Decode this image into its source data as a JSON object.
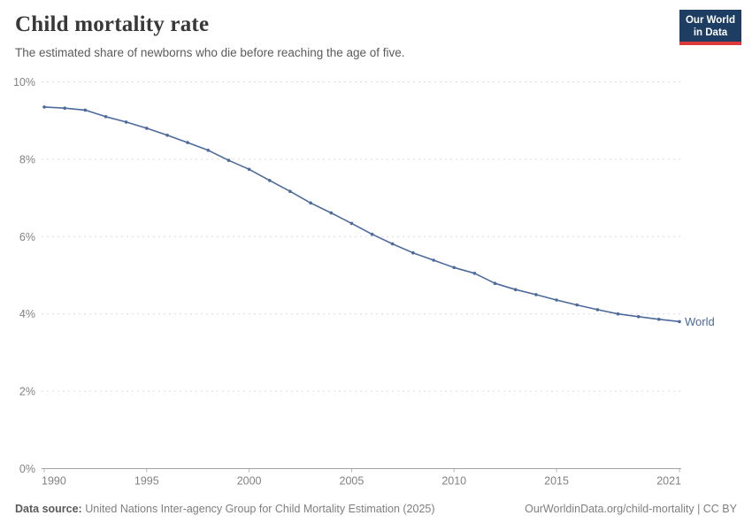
{
  "header": {
    "title": "Child mortality rate",
    "subtitle": "The estimated share of newborns who die before reaching the age of five.",
    "logo": {
      "line1": "Our World",
      "line2": "in Data",
      "bg_color": "#1d3d63",
      "accent_color": "#dc3a3a"
    }
  },
  "chart_data": {
    "type": "line",
    "title": "Child mortality rate",
    "xlabel": "",
    "ylabel": "",
    "xlim": [
      1990,
      2021
    ],
    "ylim": [
      0,
      10
    ],
    "grid": "horizontal-dashed",
    "legend_position": "end-of-line-label",
    "x_ticks": [
      {
        "value": 1990,
        "label": "1990"
      },
      {
        "value": 1995,
        "label": "1995"
      },
      {
        "value": 2000,
        "label": "2000"
      },
      {
        "value": 2005,
        "label": "2005"
      },
      {
        "value": 2010,
        "label": "2010"
      },
      {
        "value": 2015,
        "label": "2015"
      },
      {
        "value": 2021,
        "label": "2021"
      }
    ],
    "y_ticks": [
      {
        "value": 0,
        "label": "0%"
      },
      {
        "value": 2,
        "label": "2%"
      },
      {
        "value": 4,
        "label": "4%"
      },
      {
        "value": 6,
        "label": "6%"
      },
      {
        "value": 8,
        "label": "8%"
      },
      {
        "value": 10,
        "label": "10%"
      }
    ],
    "series": [
      {
        "name": "World",
        "color": "#4C6A9C",
        "x": [
          1990,
          1991,
          1992,
          1993,
          1994,
          1995,
          1996,
          1997,
          1998,
          1999,
          2000,
          2001,
          2002,
          2003,
          2004,
          2005,
          2006,
          2007,
          2008,
          2009,
          2010,
          2011,
          2012,
          2013,
          2014,
          2015,
          2016,
          2017,
          2018,
          2019,
          2020,
          2021
        ],
        "values": [
          9.35,
          9.32,
          9.27,
          9.1,
          8.96,
          8.8,
          8.62,
          8.43,
          8.23,
          7.97,
          7.74,
          7.45,
          7.17,
          6.87,
          6.61,
          6.34,
          6.06,
          5.81,
          5.58,
          5.39,
          5.2,
          5.05,
          4.79,
          4.63,
          4.5,
          4.36,
          4.23,
          4.11,
          4.0,
          3.93,
          3.86,
          3.8
        ]
      }
    ],
    "colors": {
      "gridline": "#dcdcdc",
      "axis_line": "#a3a3a3",
      "tick_mark": "#b3b3b3",
      "tick_text": "#828282"
    }
  },
  "footer": {
    "datasource_label": "Data source:",
    "datasource_text": "United Nations Inter-agency Group for Child Mortality Estimation (2025)",
    "link_text": "OurWorldinData.org/child-mortality | CC BY"
  }
}
